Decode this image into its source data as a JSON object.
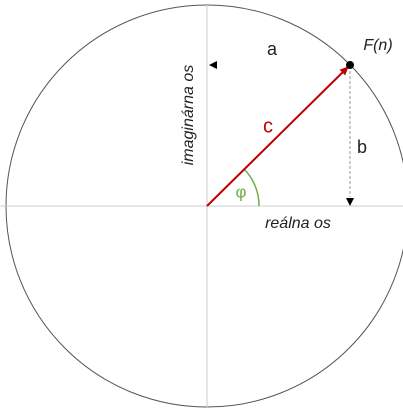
{
  "labels": {
    "imaginary_axis": "imaginárna os",
    "real_axis": "reálna os",
    "a": "a",
    "b": "b",
    "c": "c",
    "phi": "φ",
    "point": "F(n)"
  }
}
